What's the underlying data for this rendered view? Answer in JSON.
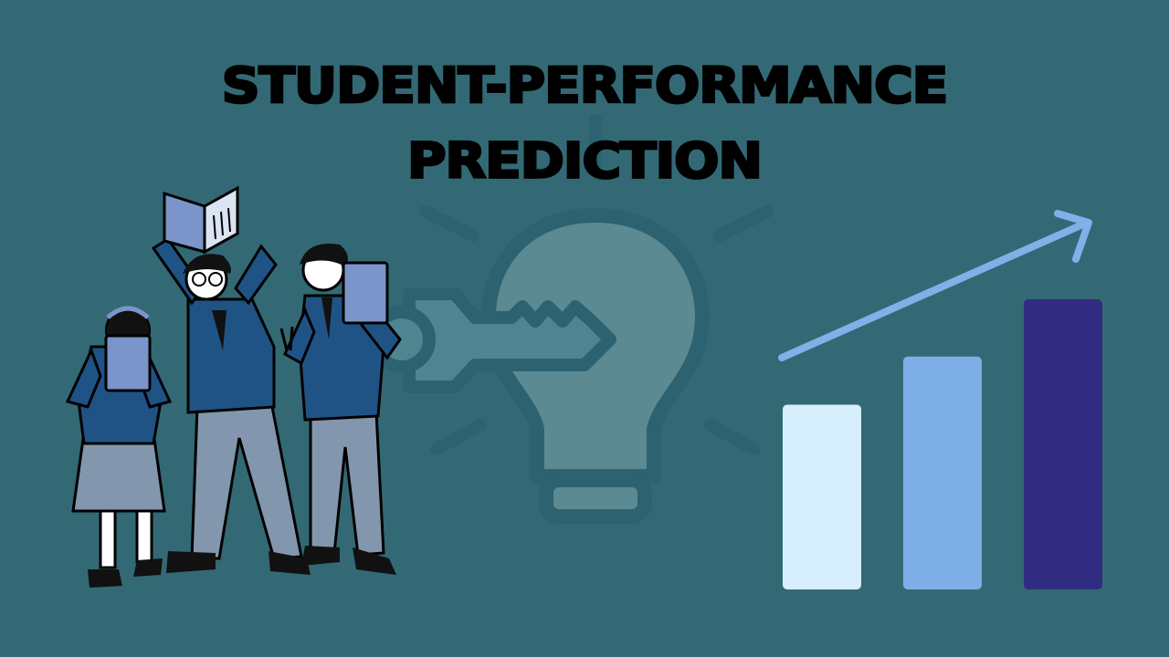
{
  "colors": {
    "background": "#336974",
    "bulb": "#5b8a93",
    "bulb_outline": "#2d6270",
    "key": "#4f8590",
    "arrow": "#7fb1e8",
    "blazer": "#1f5386",
    "trousers": "#8297ad",
    "book": "#7b94c9",
    "skin": "#ffffff",
    "bar_light": "#d7eefc",
    "bar_mid": "#7dafe6",
    "bar_dark": "#312c82"
  },
  "slide": {
    "title_line1": "STUDENT-PERFORMANCE",
    "title_line2": "PREDICTION"
  },
  "illustration": {
    "icons": [
      "lightbulb-icon",
      "key-icon",
      "trend-arrow-icon",
      "student-group-illustration"
    ]
  },
  "chart_data": {
    "type": "bar",
    "categories": [
      "",
      "",
      ""
    ],
    "values": [
      1.0,
      1.26,
      1.57
    ],
    "ylim": [
      0,
      1.57
    ],
    "grid": false,
    "legend": "none",
    "trend_arrow": "up-right"
  }
}
